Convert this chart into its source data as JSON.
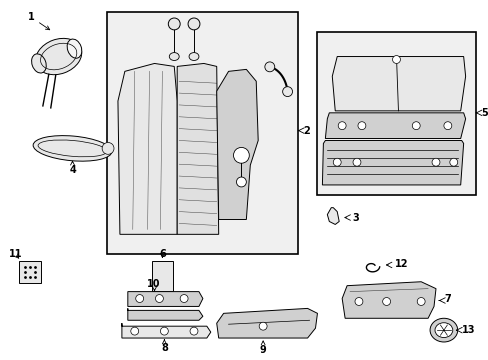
{
  "background_color": "#ffffff",
  "line_color": "#000000",
  "gray_light": "#e8e8e8",
  "gray_mid": "#d0d0d0",
  "gray_dark": "#b8b8b8",
  "box_fill": "#f0f0f0"
}
